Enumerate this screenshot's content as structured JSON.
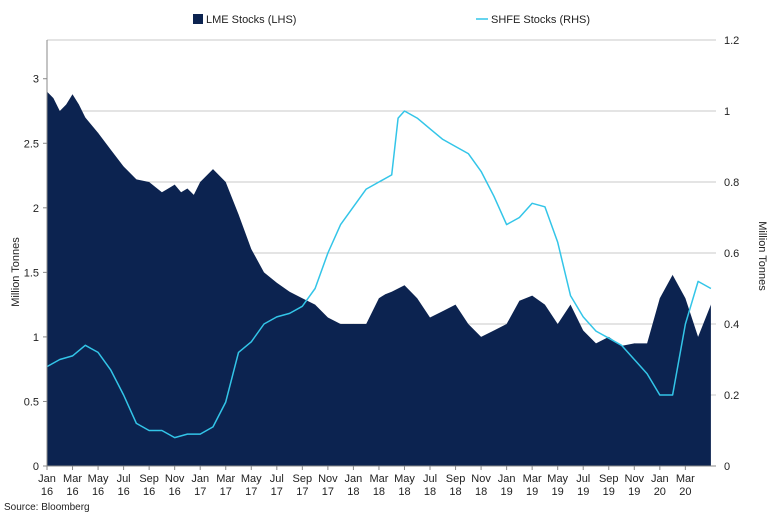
{
  "chart_data": {
    "type": "area",
    "colors": {
      "lme": "#0c2350",
      "shfe": "#33c5e8",
      "grid": "#c8c8c8",
      "axis": "#888888"
    },
    "legend_position": "top-center",
    "grid": true,
    "ylabel_left": "Million Tonnes",
    "ylabel_right": "Million Tonnes",
    "ylim_left": [
      0,
      3.3
    ],
    "ylim_right": [
      0,
      1.2
    ],
    "yticks_left": [
      "0",
      "0.5",
      "1",
      "1.5",
      "2",
      "2.5",
      "3"
    ],
    "yticks_right": [
      "0",
      "0.2",
      "0.4",
      "0.6",
      "0.8",
      "1",
      "1.2"
    ],
    "x_labels": [
      {
        "m": "Jan",
        "y": "16"
      },
      {
        "m": "Mar",
        "y": "16"
      },
      {
        "m": "May",
        "y": "16"
      },
      {
        "m": "Jul",
        "y": "16"
      },
      {
        "m": "Sep",
        "y": "16"
      },
      {
        "m": "Nov",
        "y": "16"
      },
      {
        "m": "Jan",
        "y": "17"
      },
      {
        "m": "Mar",
        "y": "17"
      },
      {
        "m": "May",
        "y": "17"
      },
      {
        "m": "Jul",
        "y": "17"
      },
      {
        "m": "Sep",
        "y": "17"
      },
      {
        "m": "Nov",
        "y": "17"
      },
      {
        "m": "Jan",
        "y": "18"
      },
      {
        "m": "Mar",
        "y": "18"
      },
      {
        "m": "May",
        "y": "18"
      },
      {
        "m": "Jul",
        "y": "18"
      },
      {
        "m": "Sep",
        "y": "18"
      },
      {
        "m": "Nov",
        "y": "18"
      },
      {
        "m": "Jan",
        "y": "19"
      },
      {
        "m": "Mar",
        "y": "19"
      },
      {
        "m": "May",
        "y": "19"
      },
      {
        "m": "Jul",
        "y": "19"
      },
      {
        "m": "Sep",
        "y": "19"
      },
      {
        "m": "Nov",
        "y": "19"
      },
      {
        "m": "Jan",
        "y": "20"
      },
      {
        "m": "Mar",
        "y": "20"
      }
    ],
    "x_range": [
      "2016-01",
      "2020-05"
    ],
    "source": "Source: Bloomberg",
    "series": [
      {
        "name": "LME Stocks (LHS)",
        "axis": "left",
        "style": "area",
        "x": [
          "2016-01",
          "2016-01",
          "2016-02",
          "2016-02",
          "2016-03",
          "2016-03",
          "2016-04",
          "2016-05",
          "2016-06",
          "2016-07",
          "2016-08",
          "2016-09",
          "2016-10",
          "2016-10",
          "2016-11",
          "2016-11",
          "2016-12",
          "2016-12",
          "2017-01",
          "2017-02",
          "2017-03",
          "2017-04",
          "2017-05",
          "2017-06",
          "2017-07",
          "2017-08",
          "2017-09",
          "2017-10",
          "2017-11",
          "2017-12",
          "2018-01",
          "2018-02",
          "2018-03",
          "2018-03",
          "2018-04",
          "2018-05",
          "2018-06",
          "2018-07",
          "2018-08",
          "2018-09",
          "2018-10",
          "2018-11",
          "2018-12",
          "2019-01",
          "2019-02",
          "2019-03",
          "2019-04",
          "2019-05",
          "2019-06",
          "2019-07",
          "2019-08",
          "2019-09",
          "2019-10",
          "2019-11",
          "2019-12",
          "2020-01",
          "2020-02",
          "2020-03",
          "2020-04",
          "2020-05"
        ],
        "values": [
          2.9,
          2.85,
          2.75,
          2.8,
          2.88,
          2.8,
          2.7,
          2.58,
          2.45,
          2.32,
          2.22,
          2.2,
          2.12,
          2.15,
          2.18,
          2.12,
          2.15,
          2.1,
          2.2,
          2.3,
          2.2,
          1.95,
          1.68,
          1.5,
          1.42,
          1.35,
          1.3,
          1.25,
          1.15,
          1.1,
          1.1,
          1.1,
          1.3,
          1.33,
          1.35,
          1.4,
          1.3,
          1.15,
          1.2,
          1.25,
          1.1,
          1.0,
          1.05,
          1.1,
          1.28,
          1.32,
          1.25,
          1.1,
          1.25,
          1.05,
          0.95,
          1.0,
          0.93,
          0.95,
          0.95,
          1.3,
          1.48,
          1.3,
          1.0,
          1.25
        ]
      },
      {
        "name": "SHFE Stocks (RHS)",
        "axis": "right",
        "style": "line",
        "x": [
          "2016-01",
          "2016-02",
          "2016-03",
          "2016-04",
          "2016-04",
          "2016-05",
          "2016-06",
          "2016-07",
          "2016-08",
          "2016-09",
          "2016-10",
          "2016-11",
          "2016-12",
          "2017-01",
          "2017-02",
          "2017-03",
          "2017-04",
          "2017-05",
          "2017-06",
          "2017-07",
          "2017-08",
          "2017-09",
          "2017-10",
          "2017-11",
          "2017-12",
          "2018-01",
          "2018-02",
          "2018-03",
          "2018-04",
          "2018-04",
          "2018-05",
          "2018-06",
          "2018-07",
          "2018-08",
          "2018-09",
          "2018-10",
          "2018-11",
          "2018-12",
          "2019-01",
          "2019-02",
          "2019-03",
          "2019-04",
          "2019-05",
          "2019-06",
          "2019-07",
          "2019-08",
          "2019-09",
          "2019-10",
          "2019-11",
          "2019-12",
          "2020-01",
          "2020-02",
          "2020-03",
          "2020-04",
          "2020-05"
        ],
        "values": [
          0.28,
          0.3,
          0.31,
          0.34,
          0.33,
          0.32,
          0.27,
          0.2,
          0.12,
          0.1,
          0.1,
          0.08,
          0.09,
          0.09,
          0.11,
          0.18,
          0.32,
          0.35,
          0.4,
          0.42,
          0.43,
          0.45,
          0.5,
          0.6,
          0.68,
          0.73,
          0.78,
          0.8,
          0.82,
          0.98,
          1.0,
          0.98,
          0.95,
          0.92,
          0.9,
          0.88,
          0.83,
          0.76,
          0.68,
          0.7,
          0.74,
          0.73,
          0.63,
          0.48,
          0.42,
          0.38,
          0.36,
          0.34,
          0.3,
          0.26,
          0.2,
          0.2,
          0.4,
          0.52,
          0.5
        ]
      }
    ]
  }
}
